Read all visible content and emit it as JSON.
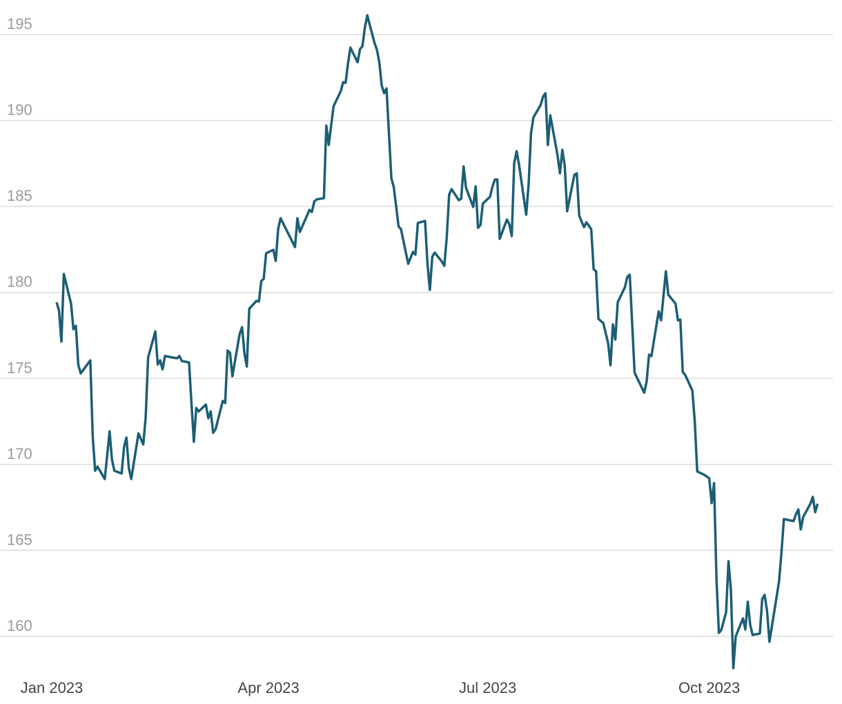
{
  "chart_data": {
    "type": "line",
    "x": [
      2,
      3,
      4,
      5,
      8,
      9,
      10,
      11,
      12,
      16,
      17,
      18,
      19,
      22,
      23,
      24,
      25,
      26,
      29,
      30,
      31,
      32,
      33,
      36,
      38,
      39,
      40,
      43,
      44,
      45,
      46,
      47,
      52,
      53,
      54,
      57,
      58,
      59,
      60,
      61,
      64,
      65,
      66,
      67,
      68,
      71,
      72,
      73,
      74,
      75,
      78,
      79,
      80,
      81,
      82,
      85,
      86,
      87,
      88,
      89,
      92,
      93,
      94,
      95,
      101,
      102,
      103,
      107,
      108,
      109,
      110,
      113,
      114,
      115,
      117,
      120,
      121,
      122,
      123,
      124,
      127,
      128,
      129,
      130,
      131,
      134,
      135,
      136,
      137,
      138,
      139,
      141,
      142,
      143,
      144,
      145,
      148,
      150,
      151,
      152,
      155,
      156,
      157,
      158,
      159,
      162,
      163,
      164,
      165,
      166,
      169,
      170,
      171,
      172,
      175,
      176,
      177,
      178,
      179,
      182,
      183,
      184,
      185,
      186,
      189,
      190,
      191,
      192,
      193,
      194,
      197,
      198,
      199,
      200,
      203,
      204,
      205,
      206,
      207,
      210,
      211,
      212,
      213,
      214,
      217,
      218,
      219,
      220,
      221,
      222,
      224,
      225,
      226,
      227,
      229,
      231,
      232,
      233,
      234,
      235,
      238,
      239,
      240,
      242,
      246,
      247,
      248,
      249,
      252,
      253,
      255,
      256,
      259,
      260,
      261,
      262,
      263,
      266,
      267,
      268,
      271,
      273,
      274,
      275,
      276,
      277,
      278,
      280,
      281,
      282,
      283,
      284,
      287,
      288,
      289,
      290,
      291,
      294,
      295,
      296,
      297,
      298,
      302,
      303,
      304,
      308,
      309,
      310,
      311,
      312,
      315,
      316,
      317,
      318
    ],
    "series": [
      {
        "color": "#1b5e75",
        "values": [
          179.43,
          178.94,
          177.14,
          181.07,
          179.35,
          177.86,
          178.06,
          175.81,
          175.29,
          176.05,
          171.64,
          169.63,
          169.87,
          169.15,
          170.51,
          171.92,
          170.27,
          169.63,
          169.47,
          171.0,
          171.56,
          169.79,
          169.15,
          171.8,
          171.16,
          172.76,
          176.21,
          177.74,
          175.81,
          176.05,
          175.53,
          176.3,
          176.17,
          176.3,
          176.01,
          175.93,
          173.57,
          171.32,
          173.28,
          173.08,
          173.48,
          172.68,
          173.08,
          171.84,
          172.04,
          173.69,
          173.57,
          176.62,
          176.5,
          175.13,
          177.58,
          177.98,
          176.46,
          175.69,
          179.06,
          179.51,
          179.47,
          180.67,
          180.79,
          182.28,
          182.48,
          181.83,
          183.68,
          184.32,
          182.64,
          184.32,
          183.52,
          184.8,
          184.68,
          185.29,
          185.41,
          185.49,
          189.7,
          188.58,
          190.83,
          191.71,
          192.23,
          192.19,
          193.31,
          194.24,
          193.39,
          194.16,
          194.32,
          195.4,
          196.12,
          194.52,
          194.12,
          193.39,
          192.03,
          191.59,
          191.87,
          186.65,
          186.13,
          185.01,
          183.84,
          183.68,
          181.67,
          182.36,
          182.2,
          184.04,
          184.16,
          181.67,
          180.15,
          182.08,
          182.32,
          181.79,
          181.55,
          183.2,
          185.69,
          186.01,
          185.37,
          185.45,
          187.33,
          186.09,
          184.97,
          186.17,
          183.76,
          183.92,
          185.17,
          185.57,
          186.17,
          186.57,
          186.57,
          183.12,
          184.24,
          183.96,
          183.28,
          187.49,
          188.22,
          187.45,
          184.52,
          186.29,
          189.26,
          190.18,
          190.91,
          191.39,
          191.59,
          188.58,
          190.3,
          187.98,
          186.93,
          188.3,
          187.37,
          184.72,
          186.85,
          186.93,
          184.48,
          184.12,
          183.8,
          184.08,
          183.68,
          181.35,
          181.23,
          178.46,
          178.22,
          177.06,
          175.77,
          178.14,
          177.26,
          179.43,
          180.31,
          180.91,
          181.03,
          175.33,
          174.17,
          174.81,
          176.38,
          176.3,
          178.9,
          178.38,
          181.23,
          179.87,
          179.35,
          178.38,
          178.42,
          175.37,
          175.21,
          174.29,
          172.48,
          169.59,
          169.39,
          169.19,
          167.75,
          168.91,
          163.37,
          160.2,
          160.36,
          161.4,
          164.37,
          162.69,
          158.15,
          160.0,
          161.04,
          160.4,
          162.01,
          160.68,
          160.08,
          160.16,
          162.17,
          162.41,
          161.48,
          159.68,
          163.21,
          164.9,
          166.82,
          166.7,
          167.1,
          167.38,
          166.22,
          166.94,
          167.71,
          168.11,
          167.22,
          167.71
        ]
      }
    ],
    "xlim": [
      -21.5,
      324.4
    ],
    "xticks": [
      {
        "value": 0,
        "label": "Jan 2023"
      },
      {
        "value": 90,
        "label": "Apr 2023"
      },
      {
        "value": 181,
        "label": "Jul 2023"
      },
      {
        "value": 273,
        "label": "Oct 2023"
      }
    ],
    "ylim": [
      157.87,
      197.01
    ],
    "yticks": [
      160,
      165,
      170,
      175,
      180,
      185,
      190,
      195
    ],
    "grid": true
  }
}
